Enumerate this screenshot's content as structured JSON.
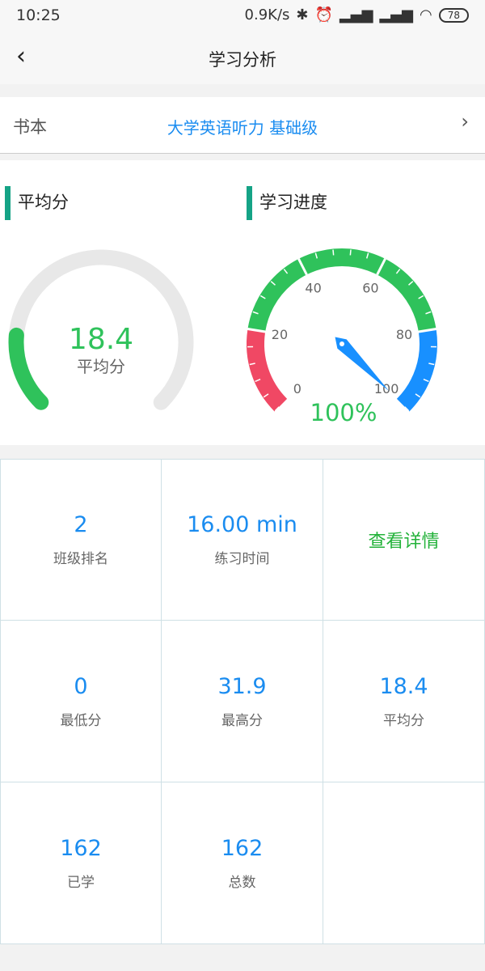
{
  "status_bar": {
    "time": "10:25",
    "net_speed": "0.9K/s",
    "battery": "78",
    "icons": [
      "bluetooth-icon",
      "alarm-icon",
      "signal-hd-icon",
      "signal-icon",
      "wifi-icon",
      "battery-icon"
    ]
  },
  "header": {
    "title": "学习分析",
    "back_icon": "chevron-left-icon"
  },
  "book": {
    "label": "书本",
    "value": "大学英语听力 基础级"
  },
  "average": {
    "title": "平均分",
    "value": "18.4",
    "label": "平均分",
    "percent": 18.4,
    "max": 100,
    "track_color": "#e8e8e8",
    "fill_color": "#2fc25b"
  },
  "progress": {
    "title": "学习进度",
    "value_text": "100%",
    "value": 100,
    "ticks": [
      "0",
      "20",
      "40",
      "60",
      "80",
      "100"
    ],
    "bands": [
      {
        "from": 0,
        "to": 20,
        "color": "#f04864"
      },
      {
        "from": 20,
        "to": 80,
        "color": "#2fc25b"
      },
      {
        "from": 80,
        "to": 100,
        "color": "#1890ff"
      }
    ],
    "needle_color": "#1890ff"
  },
  "stats": [
    {
      "value": "2",
      "label": "班级排名"
    },
    {
      "value": "16.00 min",
      "label": "练习时间"
    },
    {
      "link": "查看详情"
    },
    {
      "value": "0",
      "label": "最低分"
    },
    {
      "value": "31.9",
      "label": "最高分"
    },
    {
      "value": "18.4",
      "label": "平均分"
    },
    {
      "value": "162",
      "label": "已学"
    },
    {
      "value": "162",
      "label": "总数"
    },
    {}
  ]
}
